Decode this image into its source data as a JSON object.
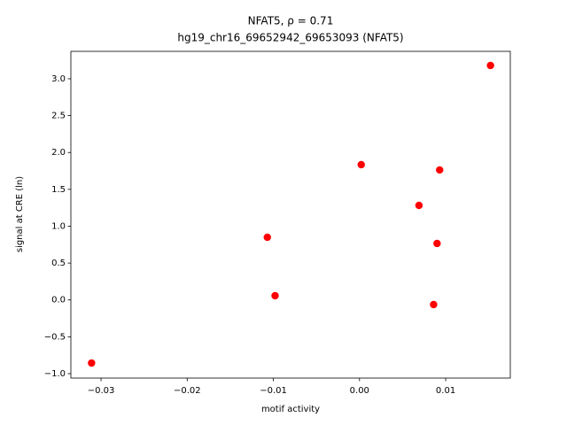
{
  "chart_data": {
    "type": "scatter",
    "title": "NFAT5, ρ = 0.71",
    "subtitle": "hg19_chr16_69652942_69653093 (NFAT5)",
    "x_label": "motif activity",
    "y_label": "signal at CRE (ln)",
    "color": "#ff0000",
    "x": [
      -0.0311,
      -0.0107,
      -0.0098,
      0.0002,
      0.0069,
      0.0093,
      0.009,
      0.0086,
      0.0152
    ],
    "values": [
      -0.856,
      0.85,
      0.057,
      1.835,
      1.282,
      1.763,
      0.766,
      -0.063,
      3.18
    ],
    "xlim": [
      -0.0335,
      0.0175
    ],
    "ylim": [
      -1.06,
      3.372
    ],
    "xticks": [
      {
        "value": -0.03,
        "label": "−0.03"
      },
      {
        "value": -0.02,
        "label": "−0.02"
      },
      {
        "value": -0.01,
        "label": "−0.01"
      },
      {
        "value": 0,
        "label": "0.00"
      },
      0.01
    ],
    "yticks": [
      {
        "value": -1,
        "label": "−1.0"
      },
      {
        "value": -0.5,
        "label": "−0.5"
      },
      {
        "value": 0,
        "label": "0.0"
      },
      0.5,
      {
        "value": 1,
        "label": "1.0"
      },
      1.5,
      {
        "value": 2,
        "label": "2.0"
      },
      2.5,
      {
        "value": 3,
        "label": "3.0"
      }
    ],
    "grid": false
  }
}
